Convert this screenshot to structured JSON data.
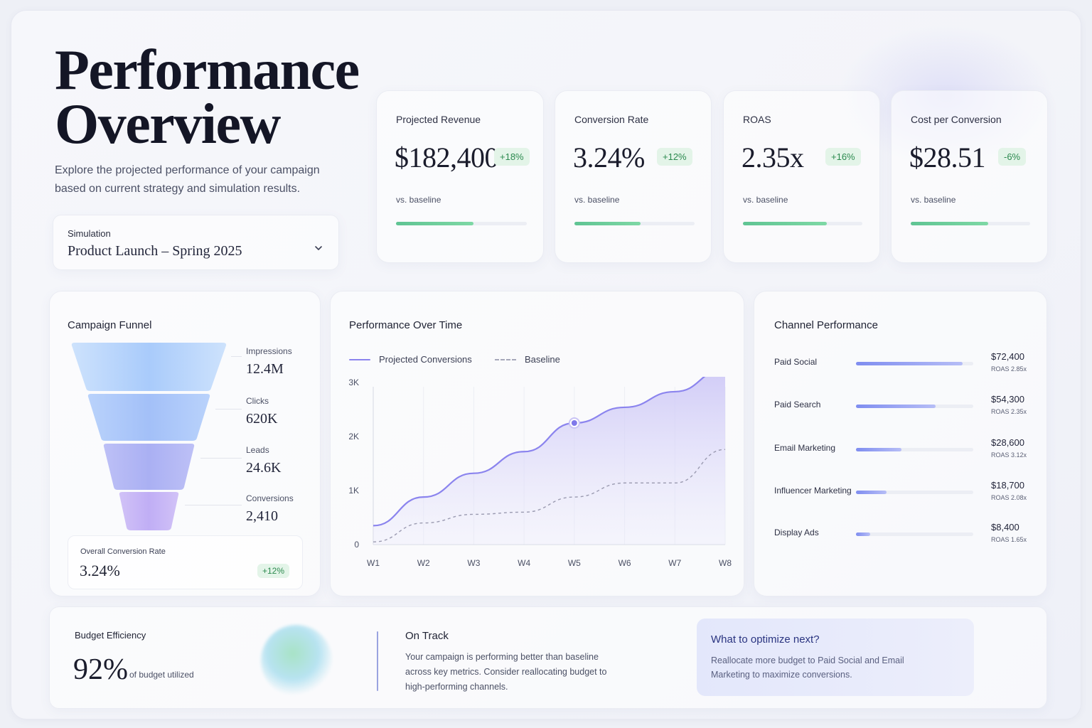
{
  "header": {
    "title_line1": "Performance",
    "title_line2": "Overview",
    "subtitle": "Explore the projected performance of your campaign based on current strategy and simulation results."
  },
  "simulation": {
    "label": "Simulation",
    "value": "Product Launch – Spring 2025",
    "icon": "chevron-down-icon"
  },
  "kpis": [
    {
      "label": "Projected Revenue",
      "value": "$182,400",
      "change": "+18%",
      "sub": "vs. baseline",
      "progress": 0.59
    },
    {
      "label": "Conversion Rate",
      "value": "3.24%",
      "change": "+12%",
      "sub": "vs. baseline",
      "progress": 0.55
    },
    {
      "label": "ROAS",
      "value": "2.35x",
      "change": "+16%",
      "sub": "vs. baseline",
      "progress": 0.7
    },
    {
      "label": "Cost per Conversion",
      "value": "$28.51",
      "change": "-6%",
      "sub": "vs. baseline",
      "progress": 0.65
    }
  ],
  "funnel": {
    "title": "Campaign Funnel",
    "stages": [
      {
        "label": "Impressions",
        "value": "12.4M"
      },
      {
        "label": "Clicks",
        "value": "620K"
      },
      {
        "label": "Leads",
        "value": "24.6K"
      },
      {
        "label": "Conversions",
        "value": "2,410"
      }
    ],
    "overall_label": "Overall Conversion Rate",
    "overall_value": "3.24%",
    "overall_change": "+12%",
    "colors": [
      "#bcd8fb",
      "#abc6f9",
      "#b2b6f4",
      "#c6b4f5"
    ]
  },
  "performance": {
    "title": "Performance Over Time",
    "legend": {
      "projected": "Projected Conversions",
      "baseline": "Baseline"
    },
    "colors": {
      "projected": "#8b84ee",
      "baseline": "#9a9ab0"
    }
  },
  "chart_data": {
    "type": "area",
    "x": [
      "W1",
      "W2",
      "W3",
      "W4",
      "W5",
      "W6",
      "W7",
      "W8"
    ],
    "y_ticks": [
      "0",
      "1K",
      "2K",
      "3K"
    ],
    "ylim": [
      0,
      3000
    ],
    "series": [
      {
        "name": "Projected Conversions",
        "values": [
          350,
          880,
          1320,
          1720,
          2250,
          2540,
          2830,
          3250
        ],
        "highlight_index": 4
      },
      {
        "name": "Baseline",
        "values": [
          50,
          400,
          560,
          600,
          880,
          1140,
          1140,
          1760
        ]
      }
    ],
    "grid": true
  },
  "channels": {
    "title": "Channel Performance",
    "items": [
      {
        "name": "Paid Social",
        "amount": "$72,400",
        "roas": "ROAS 2.85x",
        "share": 0.91
      },
      {
        "name": "Paid Search",
        "amount": "$54,300",
        "roas": "ROAS 2.35x",
        "share": 0.68
      },
      {
        "name": "Email Marketing",
        "amount": "$28,600",
        "roas": "ROAS 3.12x",
        "share": 0.39
      },
      {
        "name": "Influencer Marketing",
        "amount": "$18,700",
        "roas": "ROAS 2.08x",
        "share": 0.26
      },
      {
        "name": "Display Ads",
        "amount": "$8,400",
        "roas": "ROAS 1.65x",
        "share": 0.12
      }
    ]
  },
  "budget": {
    "title": "Budget Efficiency",
    "value": "92%",
    "sub": "of budget utilized",
    "status_title": "On Track",
    "status_text": "Your campaign is performing better than baseline across key metrics. Consider reallocating budget to high-performing channels.",
    "optimize_title": "What to optimize next?",
    "optimize_text": "Reallocate more budget to Paid Social and Email Marketing to maximize conversions."
  }
}
